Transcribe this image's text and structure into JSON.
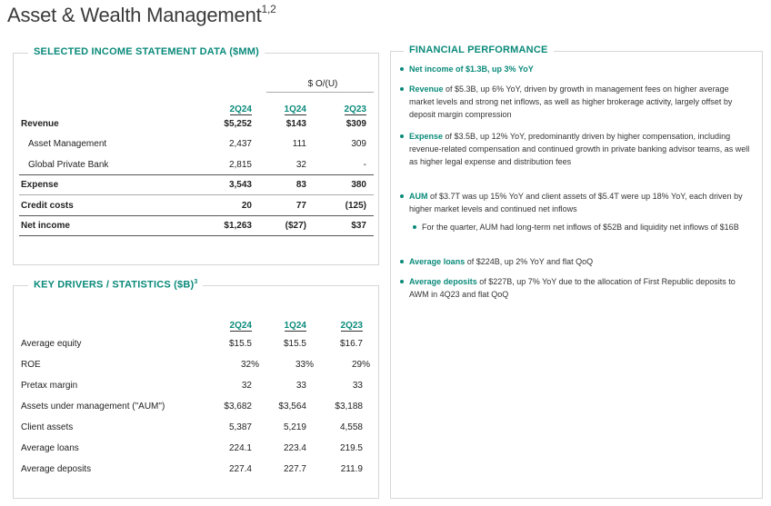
{
  "title": "Asset & Wealth Management",
  "title_sup": "1,2",
  "income": {
    "label": "SELECTED INCOME STATEMENT DATA ($MM)",
    "group_header": "$ O/(U)",
    "columns": [
      "2Q24",
      "1Q24",
      "2Q23"
    ],
    "rows": [
      {
        "label": "Revenue",
        "v": [
          "$5,252",
          "$143",
          "$309"
        ]
      },
      {
        "label": "Asset Management",
        "v": [
          "2,437",
          "111",
          "309"
        ]
      },
      {
        "label": "Global Private Bank",
        "v": [
          "2,815",
          "32",
          "-"
        ]
      },
      {
        "label": "Expense",
        "v": [
          "3,543",
          "83",
          "380"
        ]
      },
      {
        "label": "Credit costs",
        "v": [
          "20",
          "77",
          "(125)"
        ]
      },
      {
        "label": "Net income",
        "v": [
          "$1,263",
          "($27)",
          "$37"
        ]
      }
    ]
  },
  "drivers": {
    "label": "KEY DRIVERS / STATISTICS ($B)",
    "label_sup": "3",
    "columns": [
      "2Q24",
      "1Q24",
      "2Q23"
    ],
    "rows": [
      {
        "label": "Average equity",
        "v": [
          "$15.5",
          "$15.5",
          "$16.7"
        ]
      },
      {
        "label": "ROE",
        "v": [
          "32%",
          "33%",
          "29%"
        ]
      },
      {
        "label": "Pretax margin",
        "v": [
          "32",
          "33",
          "33"
        ]
      },
      {
        "label": "Assets under management (\"AUM\")",
        "v": [
          "$3,682",
          "$3,564",
          "$3,188"
        ]
      },
      {
        "label": "Client assets",
        "v": [
          "5,387",
          "5,219",
          "4,558"
        ]
      },
      {
        "label": "Average loans",
        "v": [
          "224.1",
          "223.4",
          "219.5"
        ]
      },
      {
        "label": "Average deposits",
        "v": [
          "227.4",
          "227.7",
          "211.9"
        ]
      }
    ]
  },
  "perf": {
    "label": "FINANCIAL PERFORMANCE",
    "b1_lead": "Net income of $1.3B, up 3% YoY",
    "b2_lead": "Revenue",
    "b2_text": " of $5.3B, up 6% YoY, driven by growth in management fees on higher average market levels and strong net inflows, as well as higher brokerage activity, largely offset by deposit margin compression",
    "b3_lead": "Expense",
    "b3_text": " of $3.5B, up 12% YoY, predominantly driven by higher compensation, including revenue-related compensation and continued growth in private banking advisor teams, as well as higher legal expense and distribution fees",
    "b4_lead": "AUM",
    "b4_text": " of $3.7T was up 15% YoY and client assets of $5.4T were up 18% YoY, each driven by higher market levels and continued net inflows",
    "b4_sub": "For the quarter, AUM had long-term net inflows of $52B and liquidity net inflows of $16B",
    "b5_lead": "Average loans",
    "b5_text": " of $224B, up 2% YoY and flat QoQ",
    "b6_lead": "Average deposits",
    "b6_text": " of $227B, up 7% YoY due to the allocation of First Republic deposits to AWM in 4Q23 and flat QoQ"
  }
}
